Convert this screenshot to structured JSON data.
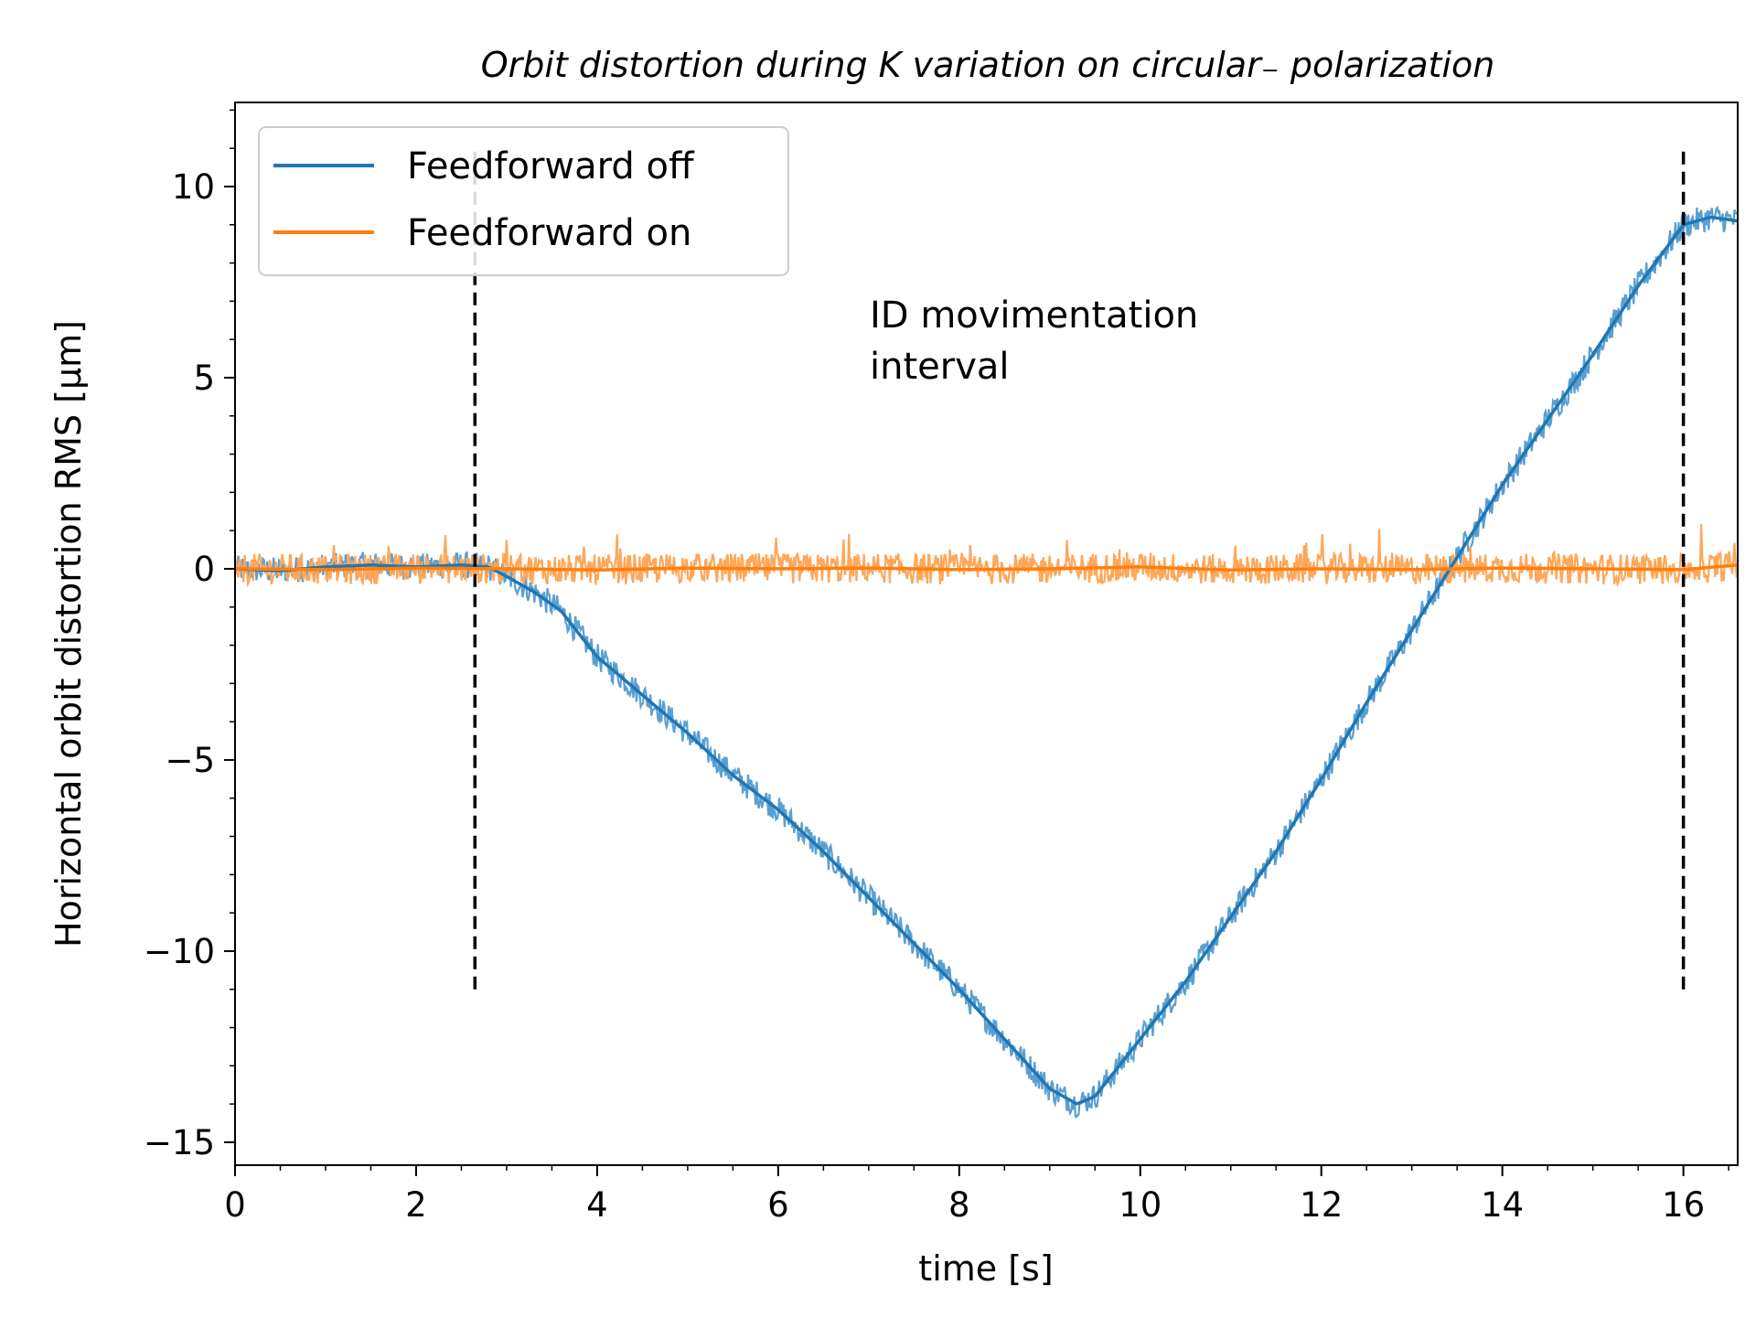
{
  "chart_data": {
    "type": "line",
    "title": "Orbit distortion during K variation on circular₋ polarization",
    "xlabel": "time [s]",
    "ylabel": "Horizontal orbit distortion RMS [μm]",
    "xlim": [
      0,
      16.6
    ],
    "ylim": [
      -15.6,
      12.2
    ],
    "x_ticks": [
      0,
      2,
      4,
      6,
      8,
      10,
      12,
      14,
      16
    ],
    "y_ticks": [
      -15,
      -10,
      -5,
      0,
      5,
      10
    ],
    "x_tick_labels": [
      "0",
      "2",
      "4",
      "6",
      "8",
      "10",
      "12",
      "14",
      "16"
    ],
    "y_tick_labels": [
      "−15",
      "−10",
      "−5",
      "0",
      "5",
      "10"
    ],
    "grid": false,
    "legend_position": "top-left",
    "annotation": [
      "ID movimentation",
      "interval"
    ],
    "vlines": {
      "x": [
        2.65,
        16.0
      ],
      "ymin": -11,
      "ymax": 11,
      "style": "dashed",
      "color": "#000000"
    },
    "series": [
      {
        "name": "Feedforward off",
        "color": "#1f77b4",
        "raw_color": "#5b9fd1",
        "noise_amplitude": 0.35,
        "x": [
          0,
          0.5,
          1.0,
          1.5,
          2.0,
          2.5,
          2.8,
          3.0,
          3.3,
          3.6,
          3.8,
          4.0,
          4.5,
          5.0,
          5.5,
          6.0,
          6.5,
          7.0,
          7.5,
          8.0,
          8.5,
          9.0,
          9.3,
          9.5,
          10.0,
          10.5,
          11.0,
          11.5,
          12.0,
          12.5,
          13.0,
          13.5,
          14.0,
          14.5,
          15.0,
          15.5,
          16.0,
          16.3,
          16.6
        ],
        "y": [
          0,
          -0.05,
          0.05,
          0.1,
          0.05,
          0.1,
          0.05,
          -0.2,
          -0.6,
          -1.1,
          -1.7,
          -2.3,
          -3.3,
          -4.3,
          -5.4,
          -6.3,
          -7.4,
          -8.6,
          -9.8,
          -11.0,
          -12.3,
          -13.6,
          -14.0,
          -13.8,
          -12.3,
          -10.8,
          -9.1,
          -7.4,
          -5.5,
          -3.5,
          -1.6,
          0.3,
          2.2,
          3.9,
          5.6,
          7.4,
          9.0,
          9.2,
          9.1
        ]
      },
      {
        "name": "Feedforward on",
        "color": "#ff7f0e",
        "raw_color": "#ffa75a",
        "noise_amplitude": 0.4,
        "x": [
          0,
          1,
          2,
          3,
          4,
          5,
          6,
          7,
          8,
          9,
          10,
          11,
          12,
          13,
          14,
          15,
          16,
          16.6
        ],
        "y": [
          0,
          -0.02,
          0.02,
          0,
          -0.03,
          0.02,
          0,
          0.02,
          -0.02,
          0,
          0.05,
          -0.03,
          0,
          -0.02,
          0.02,
          0,
          -0.02,
          0.1
        ]
      }
    ]
  }
}
